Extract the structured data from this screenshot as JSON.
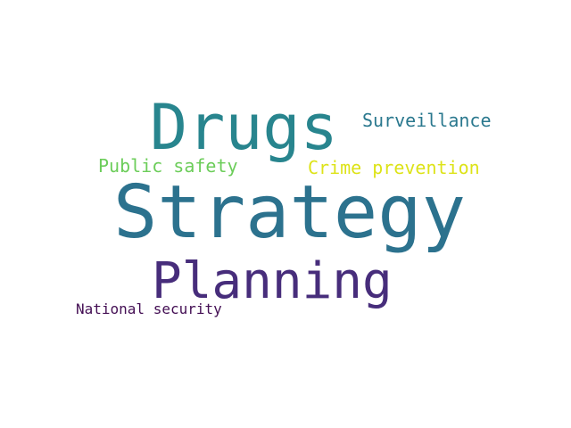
{
  "word_cloud": {
    "words": [
      {
        "id": "strategy",
        "text": "Strategy",
        "color": "#2c728e"
      },
      {
        "id": "drugs",
        "text": "Drugs",
        "color": "#28858e"
      },
      {
        "id": "planning",
        "text": "Planning",
        "color": "#472d7b"
      },
      {
        "id": "surveillance",
        "text": "Surveillance",
        "color": "#2a788e"
      },
      {
        "id": "crime-prevention",
        "text": "Crime prevention",
        "color": "#dde318"
      },
      {
        "id": "public-safety",
        "text": "Public safety",
        "color": "#6ccd5a"
      },
      {
        "id": "national-security",
        "text": "National security",
        "color": "#440f54"
      }
    ]
  }
}
